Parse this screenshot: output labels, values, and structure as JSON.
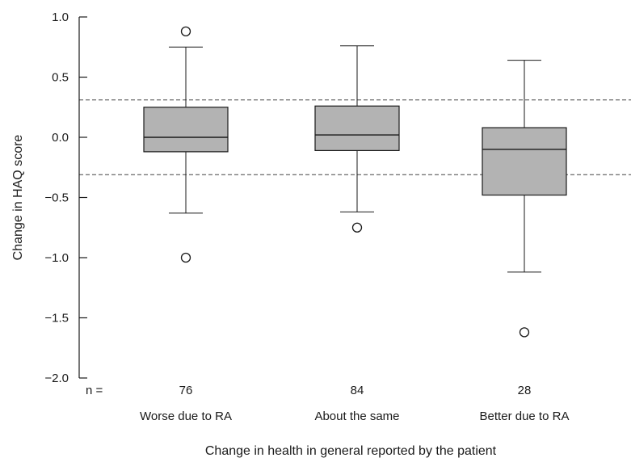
{
  "chart_data": {
    "type": "boxplot",
    "title": "",
    "xlabel": "Change in health in general reported by the patient",
    "ylabel": "Change in HAQ score",
    "ylim": [
      -2.0,
      1.0
    ],
    "yticks": [
      1.0,
      0.5,
      0.0,
      -0.5,
      -1.0,
      -1.5,
      -2.0
    ],
    "ytick_labels": [
      "1.0",
      "0.5",
      "0.0",
      "−0.5",
      "−1.0",
      "−1.5",
      "−2.0"
    ],
    "n_prefix": "n =",
    "reference_lines": [
      0.31,
      -0.31
    ],
    "box_fill": "#b3b3b3",
    "categories": [
      "Worse due to RA",
      "About the same",
      "Better due to RA"
    ],
    "n": [
      "76",
      "84",
      "28"
    ],
    "boxes": [
      {
        "whisker_low": -0.63,
        "q1": -0.12,
        "median": 0.0,
        "q3": 0.25,
        "whisker_high": 0.75,
        "outliers": [
          0.88,
          -1.0
        ]
      },
      {
        "whisker_low": -0.62,
        "q1": -0.11,
        "median": 0.02,
        "q3": 0.26,
        "whisker_high": 0.76,
        "outliers": [
          -0.75
        ]
      },
      {
        "whisker_low": -1.12,
        "q1": -0.48,
        "median": -0.1,
        "q3": 0.08,
        "whisker_high": 0.64,
        "outliers": [
          -1.62
        ]
      }
    ]
  }
}
